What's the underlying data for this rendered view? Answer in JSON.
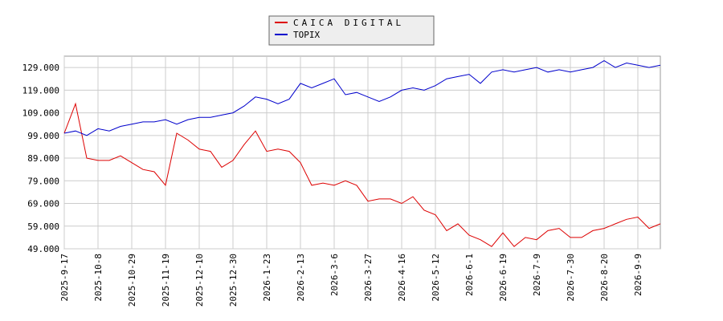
{
  "chart_data": {
    "type": "line",
    "categories": [
      "2025-9-17",
      null,
      null,
      "2025-10-8",
      null,
      null,
      "2025-10-29",
      null,
      null,
      "2025-11-19",
      null,
      null,
      "2025-12-10",
      null,
      null,
      "2025-12-30",
      null,
      null,
      "2026-1-23",
      null,
      null,
      "2026-2-13",
      null,
      null,
      "2026-3-6",
      null,
      null,
      "2026-3-27",
      null,
      null,
      "2026-4-16",
      null,
      null,
      "2026-5-12",
      null,
      null,
      "2026-6-1",
      null,
      null,
      "2026-6-19",
      null,
      null,
      "2026-7-9",
      null,
      null,
      "2026-7-30",
      null,
      null,
      "2026-8-20",
      null,
      null,
      "2026-9-9",
      null,
      null
    ],
    "series": [
      {
        "name": "CAICA DIGITAL",
        "color": "#dd0000",
        "values": [
          100,
          113,
          89,
          88,
          88,
          90,
          87,
          84,
          83,
          77,
          100,
          97,
          93,
          92,
          85,
          88,
          95,
          101,
          92,
          93,
          92,
          87,
          77,
          78,
          77,
          79,
          77,
          70,
          71,
          71,
          69,
          72,
          66,
          64,
          57,
          60,
          55,
          53,
          50,
          56,
          50,
          54,
          53,
          57,
          58,
          54,
          54,
          57,
          58,
          60,
          62,
          63,
          58,
          60
        ]
      },
      {
        "name": "TOPIX",
        "color": "#0000cc",
        "values": [
          100,
          101,
          99,
          102,
          101,
          103,
          104,
          105,
          105,
          106,
          104,
          106,
          107,
          107,
          108,
          109,
          112,
          116,
          115,
          113,
          115,
          122,
          120,
          122,
          124,
          117,
          118,
          116,
          114,
          116,
          119,
          120,
          119,
          121,
          124,
          125,
          126,
          122,
          127,
          128,
          127,
          128,
          129,
          127,
          128,
          127,
          128,
          129,
          132,
          129,
          131,
          130,
          129,
          130
        ]
      }
    ],
    "ylim": [
      49,
      134
    ],
    "yticks": [
      {
        "value": 49,
        "label": "49.000"
      },
      {
        "value": 59,
        "label": "59.000"
      },
      {
        "value": 69,
        "label": "69.000"
      },
      {
        "value": 79,
        "label": "79.000"
      },
      {
        "value": 89,
        "label": "89.000"
      },
      {
        "value": 99,
        "label": "99.000"
      },
      {
        "value": 109,
        "label": "109.000"
      },
      {
        "value": 119,
        "label": "119.000"
      },
      {
        "value": 129,
        "label": "129.000"
      }
    ],
    "grid": true
  }
}
